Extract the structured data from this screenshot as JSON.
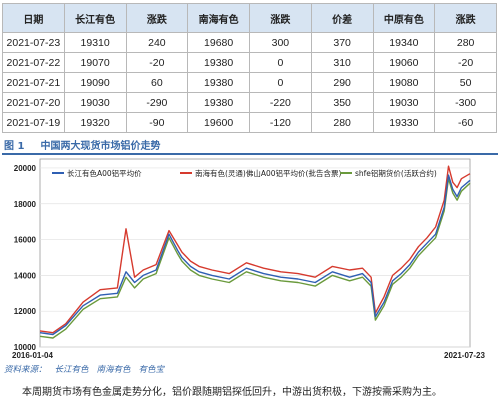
{
  "table": {
    "headers": [
      "日期",
      "长江有色",
      "涨跌",
      "南海有色",
      "涨跌",
      "价差",
      "中原有色",
      "涨跌"
    ],
    "rows": [
      [
        "2021-07-23",
        "19310",
        "240",
        "19680",
        "300",
        "370",
        "19340",
        "280"
      ],
      [
        "2021-07-22",
        "19070",
        "-20",
        "19380",
        "0",
        "310",
        "19060",
        "-20"
      ],
      [
        "2021-07-21",
        "19090",
        "60",
        "19380",
        "0",
        "290",
        "19080",
        "50"
      ],
      [
        "2021-07-20",
        "19030",
        "-290",
        "19380",
        "-220",
        "350",
        "19030",
        "-300"
      ],
      [
        "2021-07-19",
        "19320",
        "-90",
        "19600",
        "-120",
        "280",
        "19330",
        "-60"
      ]
    ]
  },
  "figure": {
    "number": "图 1",
    "title": "中国两大现货市场铝价走势"
  },
  "source": {
    "label": "资料来源：",
    "items": [
      "长江有色",
      "南海有色",
      "有色宝"
    ]
  },
  "summary": "本周期货市场有色金属走势分化，铝价跟随期铝探低回升，中游出货积极，下游按需采购为主。",
  "chart_data": {
    "type": "line",
    "x_start_label": "2016-01-04",
    "x_end_label": "2021-07-23",
    "ylim": [
      10000,
      20500
    ],
    "yticks": [
      10000,
      12000,
      14000,
      16000,
      18000,
      20000
    ],
    "legend_position": "top",
    "x": [
      0,
      0.03,
      0.06,
      0.1,
      0.14,
      0.18,
      0.2,
      0.22,
      0.24,
      0.27,
      0.3,
      0.32,
      0.33,
      0.35,
      0.37,
      0.4,
      0.44,
      0.48,
      0.52,
      0.56,
      0.6,
      0.64,
      0.68,
      0.72,
      0.75,
      0.77,
      0.78,
      0.8,
      0.82,
      0.84,
      0.86,
      0.88,
      0.9,
      0.92,
      0.94,
      0.95,
      0.96,
      0.97,
      0.98,
      1.0
    ],
    "series": [
      {
        "name": "长江有色A00铝平均价",
        "color": "#2f5fb3",
        "values": [
          10800,
          10700,
          11200,
          12300,
          12900,
          13000,
          14200,
          13600,
          14000,
          14300,
          16300,
          15400,
          15000,
          14500,
          14200,
          14000,
          13800,
          14400,
          14100,
          13900,
          13800,
          13600,
          14200,
          13900,
          14100,
          13600,
          11700,
          12500,
          13700,
          14100,
          14600,
          15300,
          15800,
          16300,
          17800,
          19600,
          18800,
          18400,
          18900,
          19310
        ]
      },
      {
        "name": "南海有色(灵通)佛山A00铝平均价(批告含票)",
        "color": "#d63a2e",
        "values": [
          10900,
          10800,
          11300,
          12500,
          13200,
          13300,
          16600,
          13900,
          14300,
          14600,
          16500,
          15700,
          15300,
          14800,
          14500,
          14300,
          14100,
          14700,
          14400,
          14200,
          14100,
          13900,
          14500,
          14300,
          14400,
          13900,
          11900,
          12800,
          14000,
          14400,
          14900,
          15600,
          16100,
          16700,
          18200,
          20100,
          19200,
          18900,
          19400,
          19680
        ]
      },
      {
        "name": "shfe铝期货价(活跃合约)",
        "color": "#6a9a3c",
        "values": [
          10600,
          10500,
          11000,
          12100,
          12700,
          12800,
          13900,
          13300,
          13800,
          14100,
          16100,
          15200,
          14800,
          14300,
          14000,
          13800,
          13600,
          14200,
          13900,
          13700,
          13600,
          13400,
          14000,
          13700,
          13900,
          13400,
          11500,
          12300,
          13500,
          13900,
          14400,
          15100,
          15600,
          16100,
          17600,
          19400,
          18600,
          18200,
          18700,
          19150
        ]
      }
    ]
  }
}
